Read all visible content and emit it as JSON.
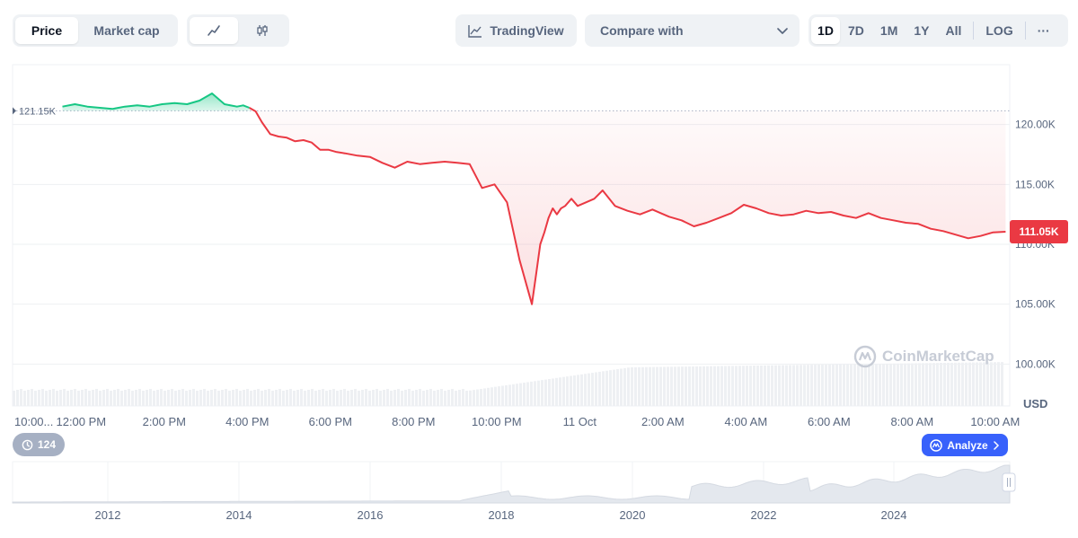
{
  "toolbar": {
    "type_tabs": [
      "Price",
      "Market cap"
    ],
    "active_type": "Price",
    "style_icons": [
      "line-chart-icon",
      "candlestick-icon"
    ],
    "tradingview_label": "TradingView",
    "compare_label": "Compare with",
    "ranges": [
      "1D",
      "7D",
      "1M",
      "1Y",
      "All"
    ],
    "active_range": "1D",
    "log_label": "LOG",
    "more_label": "···"
  },
  "badges": {
    "counter": "124",
    "analyze_label": "Analyze"
  },
  "watermark": "CoinMarketCap",
  "colors": {
    "up": "#16c784",
    "down": "#ea3943",
    "accent": "#3861fb"
  },
  "chart_data": {
    "type": "line",
    "currency_label": "USD",
    "ylim": [
      96500,
      125000
    ],
    "yticks": [
      {
        "value": 100000,
        "label": "100.00K"
      },
      {
        "value": 105000,
        "label": "105.00K"
      },
      {
        "value": 110000,
        "label": "110.00K"
      },
      {
        "value": 115000,
        "label": "115.00K"
      },
      {
        "value": 120000,
        "label": "120.00K"
      }
    ],
    "reference": {
      "value": 121150,
      "label": "121.15K"
    },
    "current": {
      "value": 111050,
      "label": "111.05K"
    },
    "xlim": [
      0,
      24
    ],
    "xticks": [
      {
        "t": 0,
        "label": "10:00..."
      },
      {
        "t": 1.65,
        "label": "12:00 PM"
      },
      {
        "t": 3.65,
        "label": "2:00 PM"
      },
      {
        "t": 5.65,
        "label": "4:00 PM"
      },
      {
        "t": 7.65,
        "label": "6:00 PM"
      },
      {
        "t": 9.65,
        "label": "8:00 PM"
      },
      {
        "t": 11.65,
        "label": "10:00 PM"
      },
      {
        "t": 13.65,
        "label": "11 Oct"
      },
      {
        "t": 15.65,
        "label": "2:00 AM"
      },
      {
        "t": 17.65,
        "label": "4:00 AM"
      },
      {
        "t": 19.65,
        "label": "6:00 AM"
      },
      {
        "t": 21.65,
        "label": "8:00 AM"
      },
      {
        "t": 23.65,
        "label": "10:00 AM"
      }
    ],
    "series": [
      {
        "x": [
          1.2,
          1.5,
          1.8,
          2.1,
          2.4,
          2.7,
          3.0,
          3.3,
          3.6,
          3.9,
          4.2,
          4.5,
          4.8,
          5.1,
          5.4,
          5.55,
          5.7,
          5.85,
          6.0,
          6.2,
          6.4,
          6.6,
          6.8,
          7.0,
          7.2,
          7.4,
          7.6,
          7.8,
          8.0,
          8.3,
          8.6,
          8.9,
          9.2,
          9.5,
          9.8,
          10.1,
          10.4,
          10.7,
          11.0,
          11.3,
          11.6,
          11.9,
          12.2,
          12.5,
          12.6,
          12.7,
          12.8,
          12.9,
          13.0,
          13.1,
          13.2,
          13.3,
          13.45,
          13.6,
          13.8,
          14.0,
          14.2,
          14.5,
          14.8,
          15.1,
          15.4,
          15.6,
          15.8,
          16.1,
          16.4,
          16.7,
          17.0,
          17.3,
          17.6,
          17.9,
          18.2,
          18.5,
          18.8,
          19.1,
          19.4,
          19.7,
          20.0,
          20.3,
          20.6,
          20.9,
          21.2,
          21.5,
          21.8,
          22.1,
          22.4,
          22.7,
          23.0,
          23.3,
          23.6,
          23.9
        ],
        "y": [
          121500,
          121700,
          121500,
          121400,
          121300,
          121500,
          121600,
          121500,
          121700,
          121800,
          121700,
          122000,
          122600,
          121700,
          121500,
          121600,
          121400,
          121100,
          120200,
          119200,
          119000,
          118900,
          118600,
          118700,
          118500,
          117900,
          117900,
          117700,
          117600,
          117400,
          117300,
          116800,
          116400,
          116900,
          116700,
          116800,
          116900,
          116800,
          116700,
          114700,
          115000,
          113500,
          108700,
          105000,
          107500,
          110000,
          111000,
          112200,
          113000,
          112500,
          113000,
          113200,
          113800,
          113200,
          113500,
          113800,
          114500,
          113200,
          112800,
          112500,
          112900,
          112600,
          112300,
          112000,
          111500,
          111800,
          112200,
          112600,
          113300,
          113000,
          112600,
          112400,
          112500,
          112800,
          112600,
          112700,
          112400,
          112200,
          112600,
          112200,
          112000,
          111800,
          111700,
          111300,
          111100,
          110800,
          110500,
          110700,
          111000,
          111050
        ]
      }
    ],
    "overview": {
      "xticks": [
        "2012",
        "2014",
        "2016",
        "2018",
        "2020",
        "2022",
        "2024"
      ]
    }
  }
}
